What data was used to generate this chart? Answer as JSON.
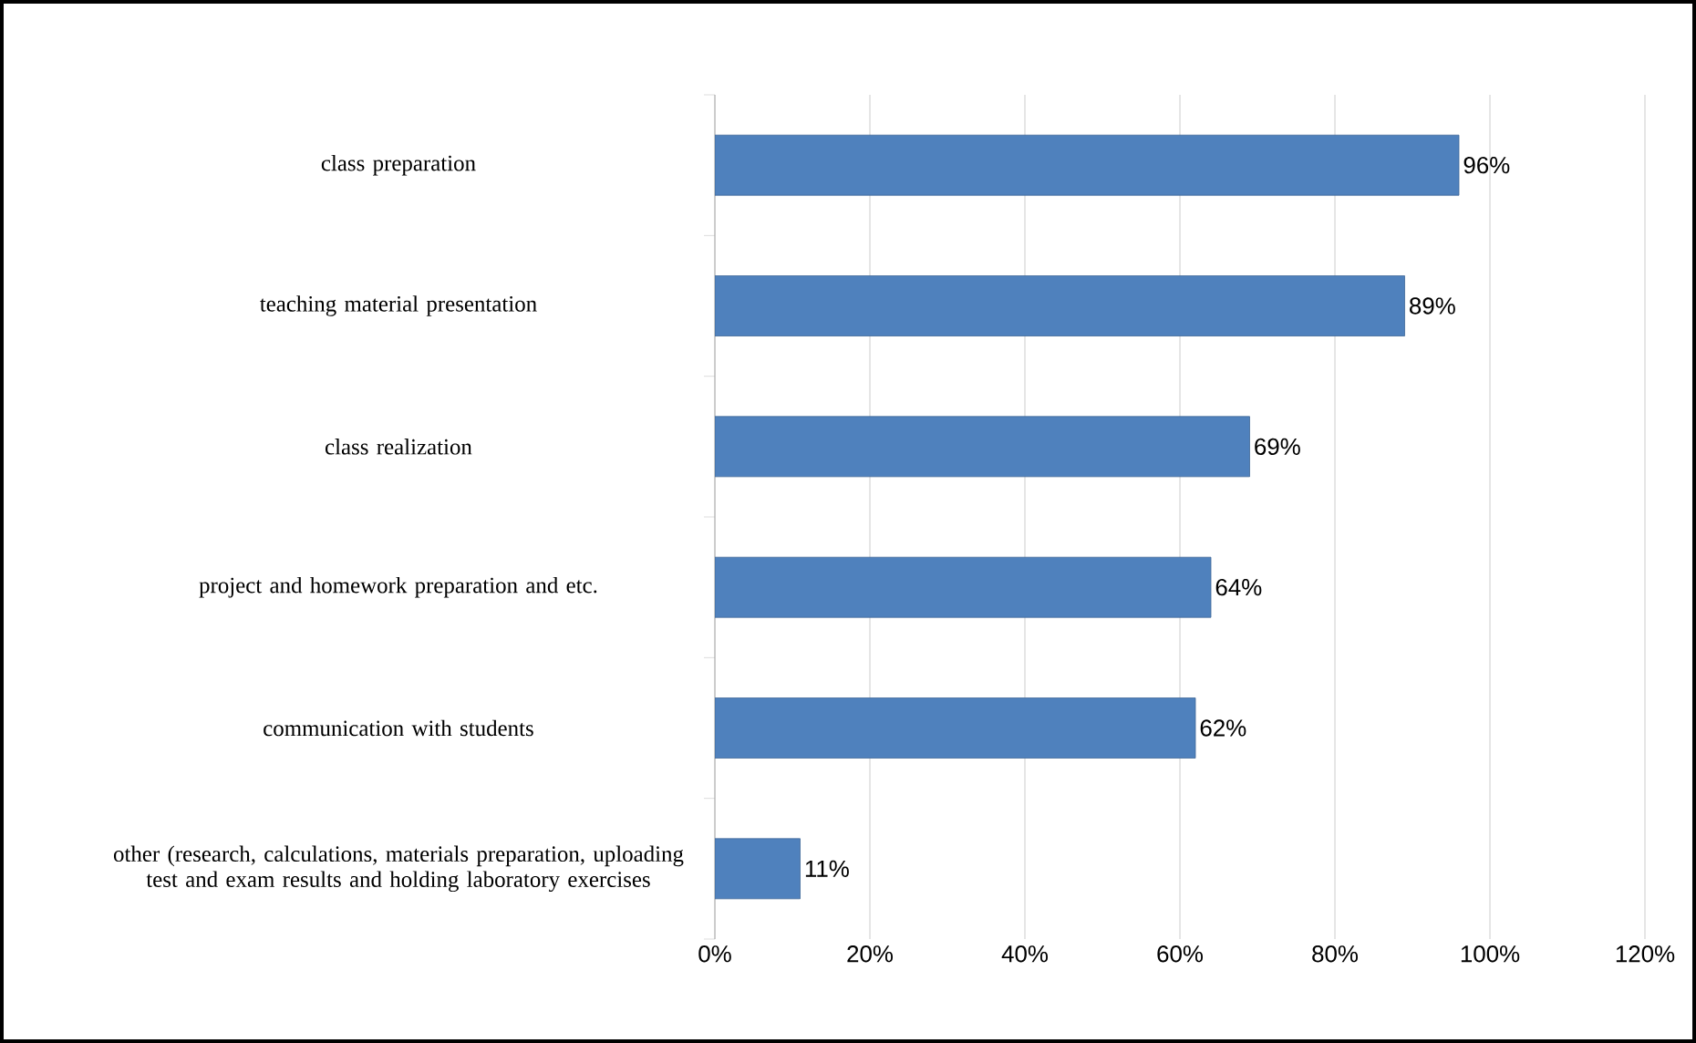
{
  "chart_data": {
    "type": "bar",
    "orientation": "horizontal",
    "categories": [
      "class preparation",
      "teaching material presentation",
      "class realization",
      "project and homework preparation and etc.",
      "communication with students",
      "other (research, calculations,  materials preparation, uploading test and exam results and holding laboratory exercises"
    ],
    "values": [
      96,
      89,
      69,
      64,
      62,
      11
    ],
    "value_labels": [
      "96%",
      "89%",
      "69%",
      "64%",
      "62%",
      "11%"
    ],
    "color": "#4f81bd",
    "xlim": [
      0,
      120
    ],
    "xticks": [
      {
        "value": 0,
        "label": "0%"
      },
      {
        "value": 20,
        "label": "20%"
      },
      {
        "value": 40,
        "label": "40%"
      },
      {
        "value": 60,
        "label": "60%"
      },
      {
        "value": 80,
        "label": "80%"
      },
      {
        "value": 100,
        "label": "100%"
      },
      {
        "value": 120,
        "label": "120%"
      }
    ],
    "grid": "x"
  }
}
